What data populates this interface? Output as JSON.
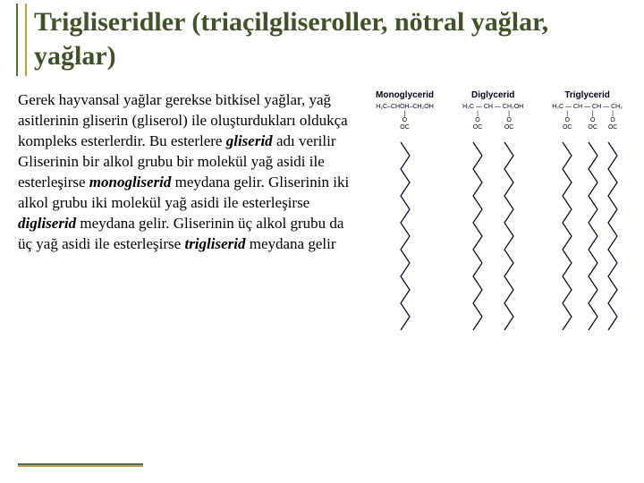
{
  "title": "Trigliseridler (triaçilgliseroller, nötral yağlar, yağlar)",
  "body": {
    "p1": "Gerek hayvansal yağlar gerekse bitkisel yağlar, yağ asitlerinin gliserin (gliserol) ile oluşturdukları oldukça kompleks esterlerdir. Bu esterlere ",
    "gliserid": "gliserid",
    "p1b": " adı verilir",
    "p2a": "Gliserinin bir alkol grubu bir molekül yağ asidi ile esterleşirse ",
    "mono": "monogliserid",
    "p2b": " meydana gelir. Gliserinin iki alkol grubu iki molekül yağ asidi ile esterleşirse ",
    "di": "digliserid",
    "p2c": " meydana gelir. Gliserinin üç alkol grubu da üç yağ asidi ile esterleşirse ",
    "tri": "trigliserid",
    "p2d": " meydana gelir"
  },
  "diagrams": [
    {
      "label": "Monoglycerid",
      "chains": 1
    },
    {
      "label": "Diglycerid",
      "chains": 2
    },
    {
      "label": "Triglycerid",
      "chains": 3
    }
  ],
  "diagram_style": {
    "atom_color": "#000020",
    "chain_length_units": 14,
    "unit_height": 15,
    "zig_width": 10,
    "stroke_width": 1.2
  },
  "colors": {
    "title": "#3f5228",
    "accent1": "#5a6b3a",
    "accent2": "#c0a040"
  }
}
